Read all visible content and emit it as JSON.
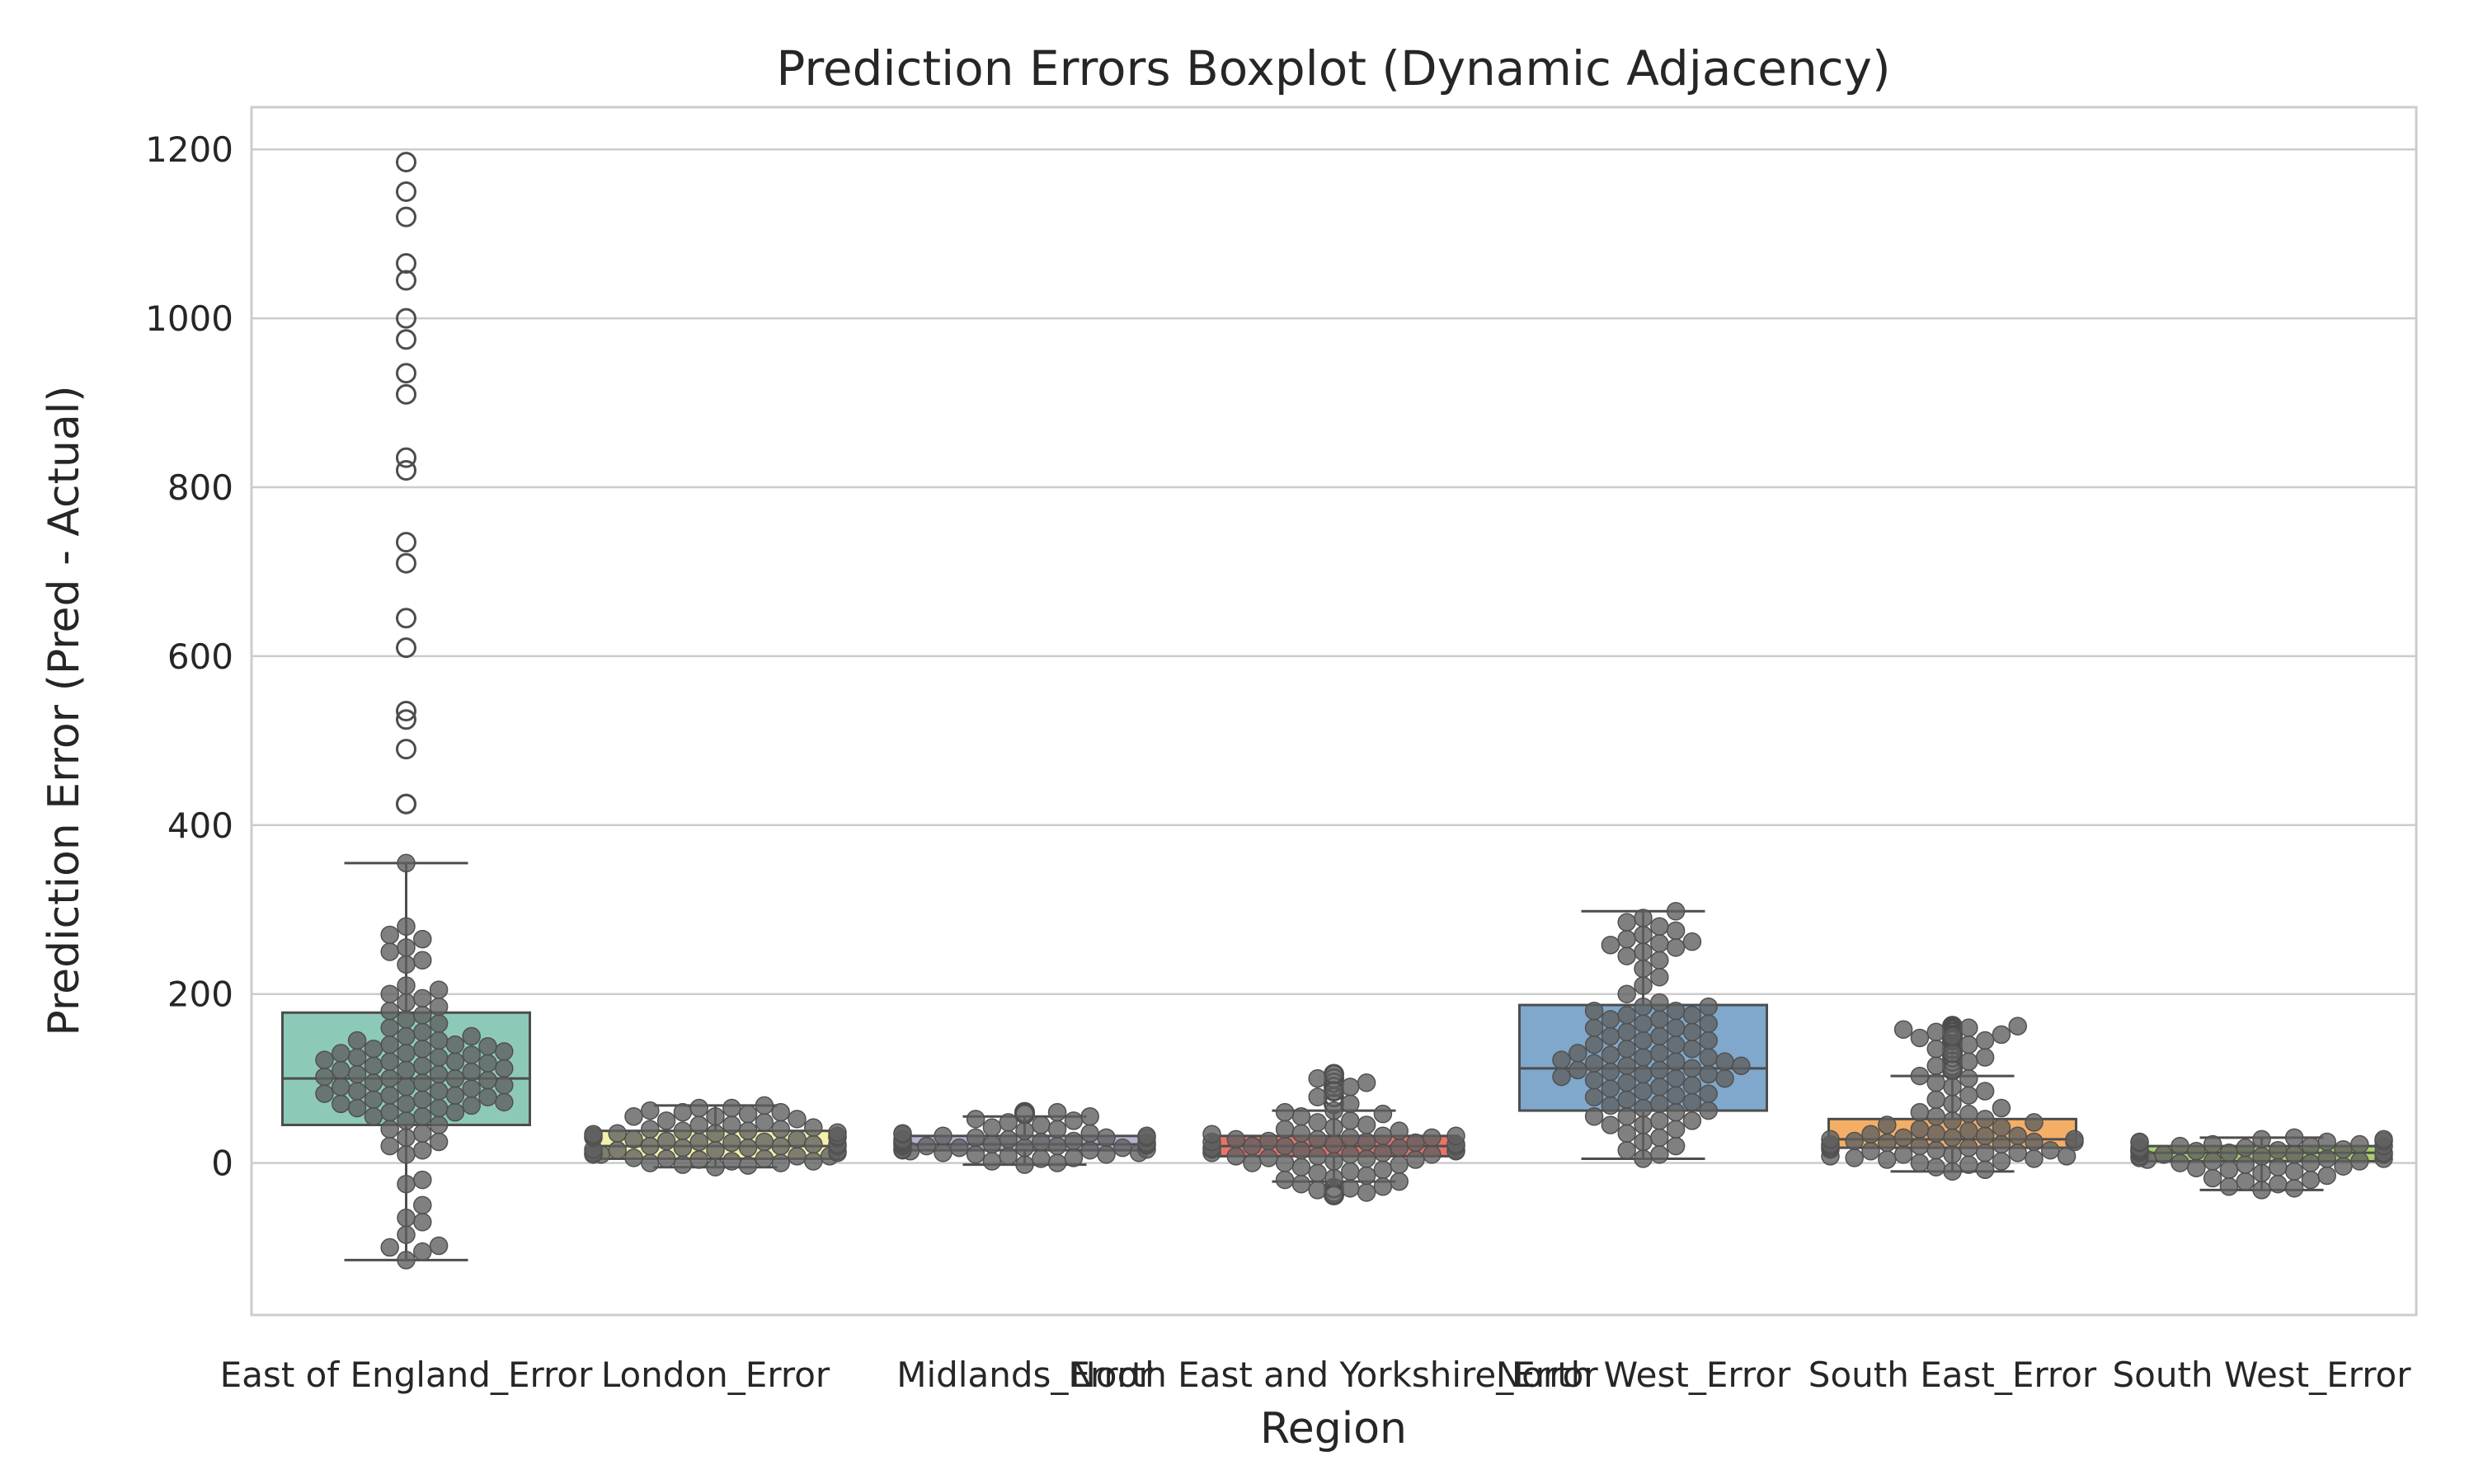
{
  "chart_data": {
    "type": "box",
    "title": "Prediction Errors Boxplot (Dynamic Adjacency)",
    "xlabel": "Region",
    "ylabel": "Prediction Error (Pred - Actual)",
    "ylim": [
      -180,
      1250
    ],
    "yticks": [
      0,
      200,
      400,
      600,
      800,
      1000,
      1200
    ],
    "grid": "horizontal",
    "categories": [
      "East of England_Error",
      "London_Error",
      "Midlands_Error",
      "North East and Yorkshire_Error",
      "North West_Error",
      "South East_Error",
      "South West_Error"
    ],
    "colors": [
      "#8dc9b9",
      "#f2f0aa",
      "#b4b2d2",
      "#e8746a",
      "#7fa8cc",
      "#f4ae66",
      "#a9cf6e"
    ],
    "point_color": "#606060",
    "series": [
      {
        "name": "East of England_Error",
        "q1": 45,
        "median": 100,
        "q3": 178,
        "whisker_low": -115,
        "whisker_high": 355,
        "outliers": [
          425,
          425,
          490,
          525,
          535,
          610,
          645,
          710,
          735,
          820,
          835,
          910,
          935,
          975,
          1000,
          1045,
          1065,
          1120,
          1150,
          1185
        ],
        "points": [
          -115,
          -105,
          -100,
          -98,
          -85,
          -70,
          -65,
          -50,
          -25,
          -20,
          10,
          15,
          20,
          25,
          30,
          35,
          40,
          45,
          50,
          55,
          55,
          60,
          60,
          65,
          65,
          68,
          70,
          70,
          72,
          75,
          75,
          78,
          80,
          80,
          82,
          85,
          85,
          88,
          90,
          90,
          92,
          95,
          95,
          98,
          100,
          100,
          102,
          105,
          105,
          108,
          110,
          110,
          112,
          115,
          115,
          118,
          120,
          120,
          122,
          125,
          125,
          128,
          130,
          130,
          132,
          135,
          135,
          138,
          140,
          140,
          145,
          145,
          150,
          150,
          155,
          160,
          165,
          170,
          175,
          180,
          185,
          190,
          195,
          200,
          205,
          210,
          235,
          240,
          250,
          255,
          265,
          270,
          280,
          355
        ]
      },
      {
        "name": "London_Error",
        "q1": 5,
        "median": 20,
        "q3": 38,
        "whisker_low": -5,
        "whisker_high": 68,
        "outliers": [],
        "points": [
          -5,
          -3,
          -2,
          0,
          0,
          2,
          2,
          4,
          5,
          5,
          6,
          8,
          8,
          10,
          10,
          12,
          12,
          14,
          15,
          15,
          16,
          18,
          18,
          20,
          20,
          20,
          22,
          22,
          24,
          25,
          25,
          26,
          28,
          28,
          30,
          30,
          32,
          32,
          34,
          35,
          35,
          36,
          38,
          38,
          40,
          40,
          42,
          45,
          45,
          48,
          50,
          52,
          55,
          55,
          58,
          60,
          60,
          62,
          65,
          65,
          68
        ]
      },
      {
        "name": "Midlands_Error",
        "q1": 15,
        "median": 22,
        "q3": 32,
        "whisker_low": -2,
        "whisker_high": 55,
        "outliers": [
          58,
          60
        ],
        "points": [
          -2,
          0,
          2,
          5,
          6,
          8,
          10,
          10,
          12,
          12,
          14,
          15,
          15,
          16,
          16,
          18,
          18,
          18,
          20,
          20,
          20,
          21,
          22,
          22,
          22,
          24,
          24,
          25,
          25,
          26,
          26,
          28,
          28,
          30,
          30,
          30,
          32,
          32,
          34,
          35,
          35,
          38,
          40,
          42,
          45,
          48,
          50,
          52,
          55,
          58,
          60
        ]
      },
      {
        "name": "North East and Yorkshire_Error",
        "q1": 8,
        "median": 20,
        "q3": 32,
        "whisker_low": -22,
        "whisker_high": 62,
        "outliers": [
          70,
          78,
          85,
          90,
          95,
          100,
          105,
          -30,
          -35,
          -38
        ],
        "points": [
          -38,
          -35,
          -32,
          -30,
          -28,
          -25,
          -22,
          -20,
          -18,
          -15,
          -12,
          -10,
          -8,
          -5,
          -2,
          0,
          0,
          2,
          4,
          5,
          6,
          8,
          8,
          10,
          10,
          12,
          12,
          14,
          15,
          15,
          16,
          18,
          18,
          20,
          20,
          20,
          22,
          22,
          24,
          25,
          25,
          26,
          28,
          28,
          30,
          30,
          32,
          32,
          34,
          35,
          38,
          40,
          42,
          45,
          48,
          50,
          55,
          58,
          60,
          62,
          70,
          78,
          85,
          90,
          95,
          100,
          105
        ]
      },
      {
        "name": "North West_Error",
        "q1": 62,
        "median": 112,
        "q3": 187,
        "whisker_low": 5,
        "whisker_high": 298,
        "outliers": [],
        "points": [
          5,
          10,
          15,
          20,
          25,
          30,
          35,
          40,
          45,
          45,
          50,
          50,
          55,
          55,
          60,
          62,
          65,
          68,
          70,
          72,
          75,
          78,
          80,
          82,
          85,
          88,
          90,
          92,
          95,
          98,
          100,
          100,
          102,
          105,
          105,
          108,
          110,
          110,
          112,
          115,
          115,
          118,
          120,
          120,
          122,
          125,
          125,
          128,
          130,
          130,
          135,
          135,
          140,
          140,
          145,
          145,
          150,
          150,
          155,
          155,
          160,
          160,
          165,
          165,
          170,
          170,
          175,
          175,
          180,
          180,
          185,
          185,
          190,
          200,
          210,
          220,
          230,
          240,
          245,
          250,
          255,
          258,
          260,
          262,
          265,
          270,
          275,
          280,
          285,
          290,
          298
        ]
      },
      {
        "name": "South East_Error",
        "q1": 18,
        "median": 28,
        "q3": 52,
        "whisker_low": -10,
        "whisker_high": 103,
        "outliers": [
          110,
          115,
          120,
          125,
          130,
          135,
          140,
          145,
          148,
          150,
          152,
          155,
          158,
          160,
          162
        ],
        "points": [
          -10,
          -8,
          -5,
          -2,
          0,
          2,
          4,
          5,
          6,
          8,
          8,
          10,
          10,
          12,
          12,
          14,
          15,
          15,
          16,
          18,
          18,
          20,
          20,
          22,
          22,
          24,
          25,
          25,
          26,
          28,
          28,
          30,
          30,
          32,
          32,
          34,
          35,
          38,
          40,
          42,
          45,
          48,
          50,
          52,
          55,
          58,
          60,
          65,
          70,
          75,
          80,
          85,
          90,
          95,
          100,
          103,
          110,
          115,
          120,
          125,
          130,
          135,
          140,
          145,
          148,
          150,
          152,
          155,
          158,
          160,
          162
        ]
      },
      {
        "name": "South West_Error",
        "q1": 2,
        "median": 12,
        "q3": 20,
        "whisker_low": -32,
        "whisker_high": 30,
        "outliers": [],
        "points": [
          -32,
          -30,
          -28,
          -25,
          -22,
          -20,
          -18,
          -15,
          -12,
          -10,
          -8,
          -6,
          -5,
          -4,
          -2,
          0,
          0,
          2,
          2,
          4,
          5,
          5,
          6,
          8,
          8,
          10,
          10,
          10,
          12,
          12,
          12,
          14,
          14,
          15,
          15,
          16,
          16,
          18,
          18,
          20,
          20,
          20,
          22,
          22,
          24,
          25,
          25,
          26,
          28,
          28,
          30
        ]
      }
    ]
  }
}
